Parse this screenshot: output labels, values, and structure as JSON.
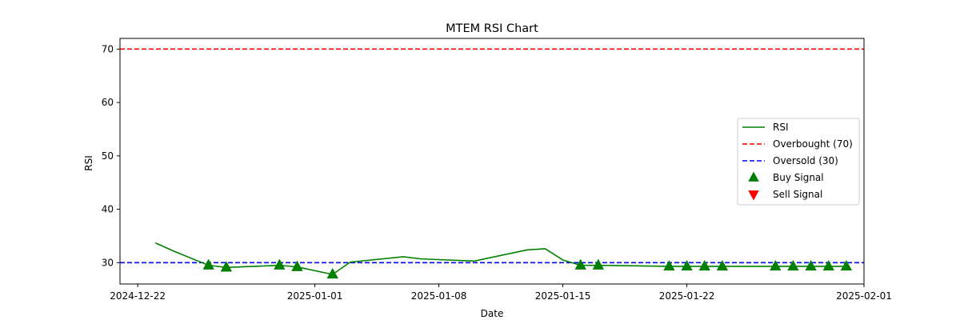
{
  "chart_data": {
    "type": "line",
    "title": "MTEM RSI Chart",
    "xlabel": "Date",
    "ylabel": "RSI",
    "xlim": [
      "2024-12-21",
      "2025-02-01"
    ],
    "ylim": [
      26,
      72
    ],
    "x_ticks": [
      "2024-12-22",
      "2025-01-01",
      "2025-01-08",
      "2025-01-15",
      "2025-01-22",
      "2025-02-01"
    ],
    "y_ticks": [
      30,
      40,
      50,
      60,
      70
    ],
    "grid": false,
    "legend_position": "center-right",
    "series": [
      {
        "name": "RSI",
        "color": "#008000",
        "style": "solid",
        "x": [
          "2024-12-23",
          "2024-12-24",
          "2024-12-26",
          "2024-12-27",
          "2024-12-30",
          "2024-12-31",
          "2025-01-02",
          "2025-01-03",
          "2025-01-06",
          "2025-01-07",
          "2025-01-10",
          "2025-01-13",
          "2025-01-14",
          "2025-01-15",
          "2025-01-16",
          "2025-01-17",
          "2025-01-21",
          "2025-01-22",
          "2025-01-23",
          "2025-01-24",
          "2025-01-27",
          "2025-01-28",
          "2025-01-29",
          "2025-01-30",
          "2025-01-31"
        ],
        "y": [
          33.7,
          32.2,
          29.5,
          29.1,
          29.5,
          29.2,
          27.8,
          30.1,
          31.1,
          30.7,
          30.3,
          32.4,
          32.6,
          30.5,
          29.5,
          29.5,
          29.3,
          29.3,
          29.3,
          29.3,
          29.3,
          29.3,
          29.3,
          29.3,
          29.3
        ]
      }
    ],
    "reference_lines": [
      {
        "name": "Overbought (70)",
        "value": 70,
        "color": "#ff0000",
        "style": "dashed"
      },
      {
        "name": "Oversold (30)",
        "value": 30,
        "color": "#0000ff",
        "style": "dashed"
      }
    ],
    "markers": [
      {
        "name": "Buy Signal",
        "color": "#008000",
        "shape": "triangle-up",
        "x": [
          "2024-12-26",
          "2024-12-27",
          "2024-12-30",
          "2024-12-31",
          "2025-01-02",
          "2025-01-16",
          "2025-01-17",
          "2025-01-21",
          "2025-01-22",
          "2025-01-23",
          "2025-01-24",
          "2025-01-27",
          "2025-01-28",
          "2025-01-29",
          "2025-01-30",
          "2025-01-31"
        ],
        "y": [
          29.5,
          29.1,
          29.5,
          29.2,
          27.8,
          29.5,
          29.5,
          29.3,
          29.3,
          29.3,
          29.3,
          29.3,
          29.3,
          29.3,
          29.3,
          29.3
        ]
      },
      {
        "name": "Sell Signal",
        "color": "#ff0000",
        "shape": "triangle-down",
        "x": [],
        "y": []
      }
    ]
  }
}
